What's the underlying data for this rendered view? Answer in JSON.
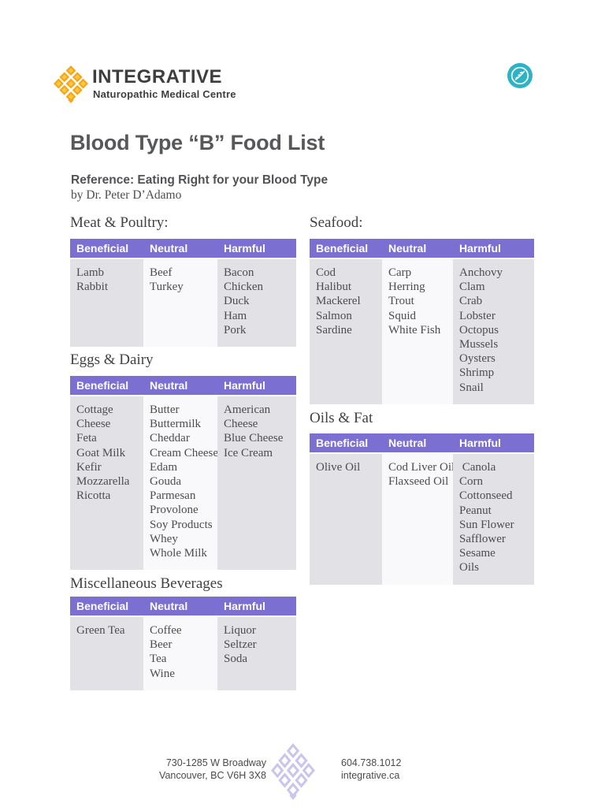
{
  "brand": {
    "logo_title": "INTEGRATIVE",
    "logo_subtitle": "Naturopathic Medical Centre"
  },
  "header": {
    "title": "Blood Type “B” Food List",
    "reference": "Reference: Eating Right for your Blood Type",
    "byline": "by Dr. Peter D’Adamo"
  },
  "table_headers": [
    "Beneficial",
    "Neutral",
    "Harmful"
  ],
  "sections": {
    "meat": {
      "heading": "Meat & Poultry:",
      "beneficial": [
        "Lamb",
        "Rabbit"
      ],
      "neutral": [
        "Beef",
        "Turkey"
      ],
      "harmful": [
        "Bacon",
        "Chicken",
        "Duck",
        "Ham",
        "Pork"
      ]
    },
    "seafood": {
      "heading": "Seafood:",
      "beneficial": [
        "Cod",
        "Halibut",
        "Mackerel",
        "Salmon",
        "Sardine"
      ],
      "neutral": [
        "Carp",
        "Herring",
        "Trout",
        "Squid",
        "White Fish"
      ],
      "harmful": [
        "Anchovy",
        "Clam",
        "Crab",
        "Lobster",
        "Octopus",
        "Mussels",
        "Oysters",
        "Shrimp",
        "Snail"
      ]
    },
    "eggs": {
      "heading": "Eggs & Dairy",
      "beneficial": [
        "Cottage",
        "Cheese",
        "Feta",
        "Goat Milk",
        "Kefir",
        "Mozzarella",
        "Ricotta"
      ],
      "neutral": [
        "Butter",
        "Buttermilk",
        "Cheddar",
        "Cream Cheese",
        "Edam",
        "Gouda",
        "Parmesan",
        "Provolone",
        "Soy Products",
        "Whey",
        "Whole Milk"
      ],
      "harmful": [
        "American",
        "Cheese",
        "Blue Cheese",
        "Ice Cream"
      ]
    },
    "oils": {
      "heading": "Oils & Fat",
      "beneficial": [
        "Olive Oil"
      ],
      "neutral": [
        "Cod Liver Oil",
        "Flaxseed Oil"
      ],
      "harmful": [
        " Canola",
        "Corn",
        "Cottonseed",
        "Peanut",
        "Sun Flower",
        "Safflower",
        "Sesame",
        "Oils"
      ]
    },
    "misc": {
      "heading": "Miscellaneous Beverages",
      "beneficial": [
        "Green Tea"
      ],
      "neutral": [
        "Coffee",
        "Beer",
        "Tea",
        "Wine"
      ],
      "harmful": [
        "Liquor",
        "Seltzer",
        "Soda"
      ]
    }
  },
  "footer": {
    "address_line1": "730-1285 W Broadway",
    "address_line2": "Vancouver, BC V6H 3X8",
    "phone": "604.738.1012",
    "website": "integrative.ca"
  },
  "colors": {
    "accent_purple": "#7B6FD2",
    "beneficial_harmful_bg": "#E2E1E6",
    "neutral_bg": "#F9F9FB",
    "badge_teal": "#2CB4C6",
    "logo_gold": "#F4A71D",
    "logo_gold_light": "#FFC73A",
    "footer_knot_lavender": "#CBC5EB"
  }
}
